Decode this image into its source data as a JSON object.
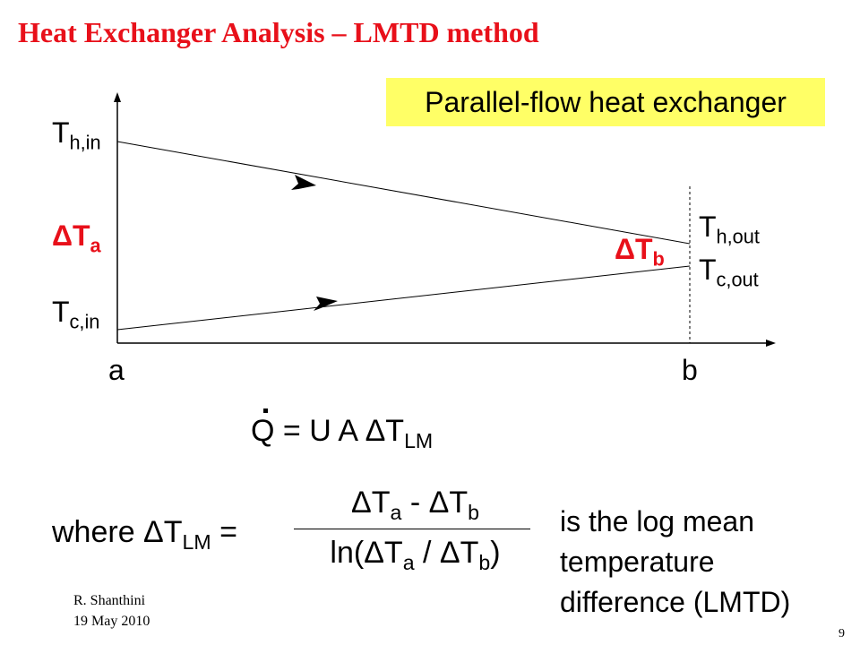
{
  "title": "Heat Exchanger Analysis – LMTD method",
  "badge": "Parallel-flow heat exchanger",
  "diagram": {
    "hot_in": {
      "main": "T",
      "sub": "h,in"
    },
    "cold_in": {
      "main": "T",
      "sub": "c,in"
    },
    "hot_out": {
      "main": "T",
      "sub": "h,out"
    },
    "cold_out": {
      "main": "T",
      "sub": "c,out"
    },
    "delta_a": {
      "main": "ΔT",
      "sub": "a"
    },
    "delta_b": {
      "main": "ΔT",
      "sub": "b"
    },
    "x_start": "a",
    "x_end": "b",
    "highlight_color": "#e8101a"
  },
  "equation1": {
    "lhs": "Q",
    "mid": " = U A ΔT",
    "sub": "LM"
  },
  "equation2": {
    "where": "where ΔT",
    "where_sub": "LM",
    "equals": " =",
    "num": {
      "p1": "ΔT",
      "s1": "a",
      "p2": " - ΔT",
      "s2": "b"
    },
    "den": {
      "p1": "ln(ΔT",
      "s1": "a",
      "p2": " / ΔT",
      "s2": "b",
      "p3": ")"
    }
  },
  "explanation": [
    "is the log mean",
    "temperature",
    "difference (LMTD)"
  ],
  "footer": {
    "author": "R. Shanthini",
    "date": "19 May 2010",
    "slide_number": "9"
  }
}
